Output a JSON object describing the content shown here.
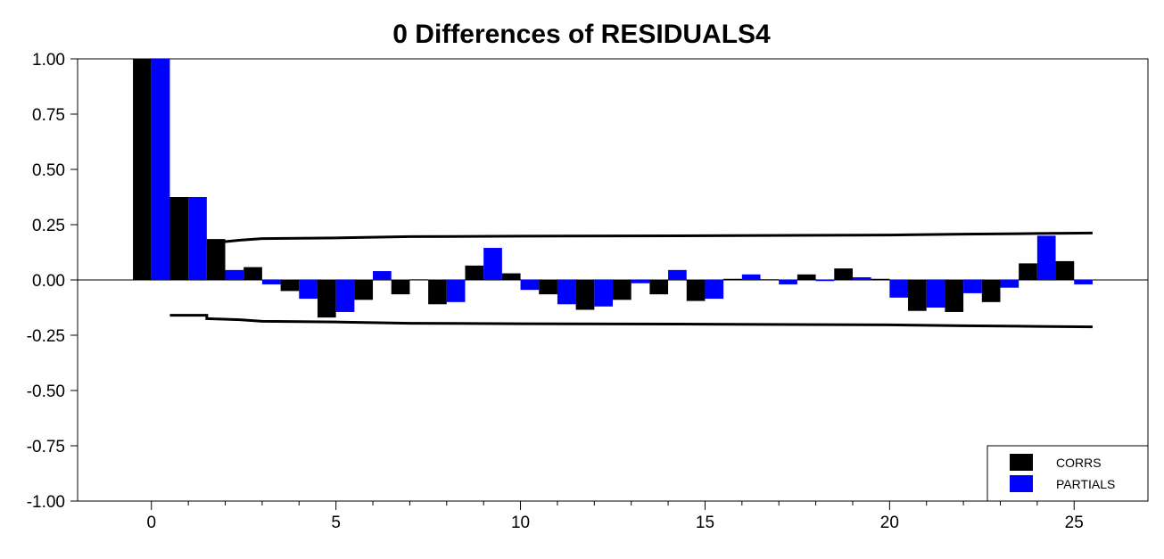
{
  "chart_data": {
    "type": "bar",
    "title": "0 Differences of RESIDUALS4",
    "xlabel": "",
    "ylabel": "",
    "xlim": [
      -2,
      27
    ],
    "ylim": [
      -1.0,
      1.0
    ],
    "y_ticks": [
      "1.00",
      "0.75",
      "0.50",
      "0.25",
      "0.00",
      "-0.25",
      "-0.50",
      "-0.75",
      "-1.00"
    ],
    "y_tick_values": [
      1.0,
      0.75,
      0.5,
      0.25,
      0.0,
      -0.25,
      -0.5,
      -0.75,
      -1.0
    ],
    "x_ticks": [
      "0",
      "5",
      "10",
      "15",
      "20",
      "25"
    ],
    "x_tick_values": [
      0,
      5,
      10,
      15,
      20,
      25
    ],
    "lags": [
      0,
      1,
      2,
      3,
      4,
      5,
      6,
      7,
      8,
      9,
      10,
      11,
      12,
      13,
      14,
      15,
      16,
      17,
      18,
      19,
      20,
      21,
      22,
      23,
      24,
      25
    ],
    "series": [
      {
        "name": "CORRS",
        "color": "#000000",
        "values": [
          1.0,
          0.375,
          0.185,
          0.058,
          -0.05,
          -0.17,
          -0.09,
          -0.065,
          -0.11,
          0.065,
          0.03,
          -0.065,
          -0.135,
          -0.09,
          -0.065,
          -0.095,
          0.005,
          0.003,
          0.025,
          0.052,
          0.005,
          -0.14,
          -0.145,
          -0.1,
          0.075,
          0.085
        ]
      },
      {
        "name": "PARTIALS",
        "color": "#0000ff",
        "values": [
          1.0,
          0.375,
          0.045,
          -0.02,
          -0.085,
          -0.145,
          0.04,
          0.003,
          -0.1,
          0.145,
          -0.045,
          -0.11,
          -0.12,
          -0.015,
          0.045,
          -0.085,
          0.025,
          -0.02,
          -0.005,
          0.012,
          -0.08,
          -0.125,
          -0.06,
          -0.035,
          0.2,
          -0.02
        ]
      }
    ],
    "confidence_band": {
      "upper": [
        [
          1.5,
          0.165
        ],
        [
          2.4,
          0.18
        ],
        [
          3.0,
          0.187
        ],
        [
          5.0,
          0.19
        ],
        [
          7.0,
          0.196
        ],
        [
          10.0,
          0.198
        ],
        [
          15.0,
          0.2
        ],
        [
          20.0,
          0.203
        ],
        [
          22.0,
          0.207
        ],
        [
          24.0,
          0.21
        ],
        [
          25.5,
          0.212
        ]
      ],
      "lower": [
        [
          0.5,
          -0.16
        ],
        [
          1.5,
          -0.16
        ],
        [
          1.5,
          -0.175
        ],
        [
          2.4,
          -0.18
        ],
        [
          3.0,
          -0.187
        ],
        [
          5.0,
          -0.19
        ],
        [
          7.0,
          -0.196
        ],
        [
          10.0,
          -0.198
        ],
        [
          15.0,
          -0.2
        ],
        [
          20.0,
          -0.203
        ],
        [
          22.0,
          -0.207
        ],
        [
          24.0,
          -0.21
        ],
        [
          25.5,
          -0.212
        ]
      ],
      "color": "#000000"
    },
    "legend": {
      "position": "bottom-right",
      "entries": [
        "CORRS",
        "PARTIALS"
      ]
    },
    "grid": false
  }
}
